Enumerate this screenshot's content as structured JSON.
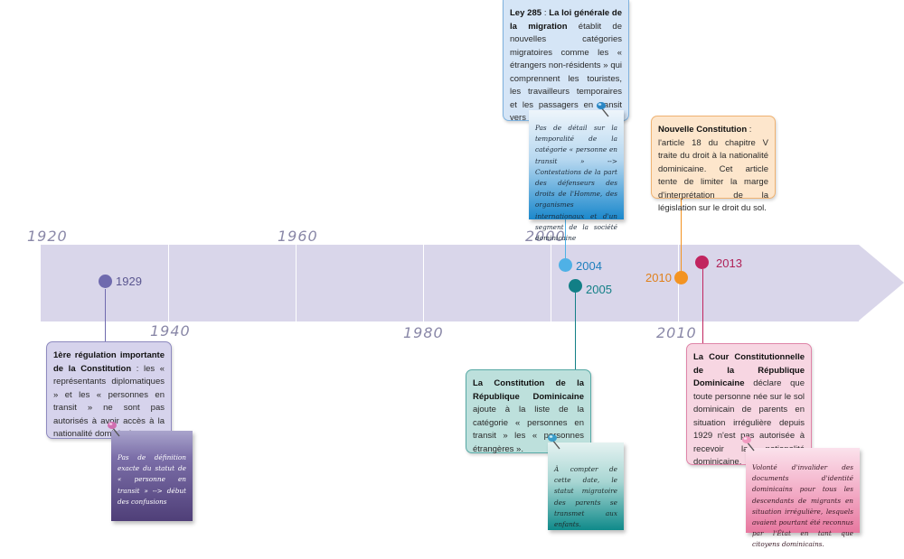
{
  "colors": {
    "band": "#d9d6ea",
    "decade_label": "#8a88a8",
    "purple": "#6f6aae",
    "light_blue": "#4fb1e6",
    "teal": "#127f86",
    "orange": "#f39321",
    "crimson": "#c1255f"
  },
  "decades": [
    "1920",
    "1940",
    "1960",
    "1980",
    "2000",
    "2010"
  ],
  "events": {
    "e1929": {
      "year": "1929",
      "card_title": "1ère régulation importante de la Constitution",
      "card_text": " : les « représentants diplomatiques » et les « personnes en transit » ne sont pas autorisés à avoir accès à la nationalité dominicaine.",
      "note": "Pas de définition exacte du statut de « personne en transit » --> début des confusions"
    },
    "e2004": {
      "year": "2004",
      "card_title": "Ley 285",
      "card_title_2": "La loi générale de la migration",
      "card_text": " établit de nouvelles catégories migratoires comme les « étrangers non-résidents » qui comprennent les touristes, les travailleurs temporaires et les passagers en transit vers une autre destination.",
      "note": "Pas de détail sur la temporalité de la catégorie « personne en transit » --> Contestations de la part des défenseurs des droits de l'Homme, des organismes internationaux et d'un segment de la société dominicaine"
    },
    "e2005": {
      "year": "2005",
      "card_title": "La Constitution de la République Dominicaine",
      "card_text": " ajoute à la liste de la catégorie « personnes en transit » les « personnes étrangères ».",
      "note": "À compter de cette date, le statut migratoire des parents se transmet aux enfants."
    },
    "e2010": {
      "year": "2010",
      "card_title": "Nouvelle Constitution",
      "card_text": "l'article 18 du chapitre V traite du droit à la nationalité dominicaine. Cet article tente de limiter la marge d'interprétation de la législation sur le droit du sol."
    },
    "e2013": {
      "year": "2013",
      "card_title": "La Cour Constitutionnelle de la République Dominicaine",
      "card_text": " déclare que toute personne née sur le sol dominicain de parents en situation irrégulière depuis 1929 n'est pas autorisée à recevoir la nationalité dominicaine.",
      "note": "Volonté d'invalider des documents d'identité dominicains pour tous les descendants de migrants en situation irrégulière, lesquels avaient pourtant été reconnus par l'État en tant que citoyens dominicains."
    }
  },
  "icons": [
    "push-pin-icon"
  ]
}
